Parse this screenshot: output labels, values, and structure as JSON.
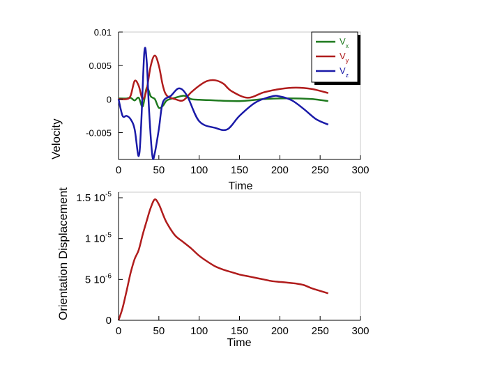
{
  "chart_data": [
    {
      "type": "line",
      "xlabel": "Time",
      "ylabel": "Velocity",
      "xlim": [
        0,
        300
      ],
      "ylim": [
        -0.009,
        0.01
      ],
      "x_ticks": [
        "0",
        "50",
        "100",
        "150",
        "200",
        "250",
        "300"
      ],
      "y_ticks": [
        "0.01",
        "0.005",
        "0",
        "-0.005"
      ],
      "legend": {
        "placement": "top-right",
        "labels": [
          "V",
          "V",
          "V"
        ],
        "subs": [
          "x",
          "y",
          "z"
        ]
      },
      "colors": [
        "#1f7a1f",
        "#b01c1c",
        "#1a1aa8"
      ],
      "series": [
        {
          "name": "Vx",
          "x": [
            0,
            10,
            15,
            20,
            25,
            30,
            35,
            40,
            45,
            50,
            55,
            60,
            70,
            80,
            85,
            90,
            100,
            120,
            150,
            180,
            200,
            220,
            240,
            260
          ],
          "y": [
            0.0001,
            0.0001,
            0.0002,
            -0.0002,
            0.0002,
            -0.0011,
            0.0017,
            0.0004,
            0.0,
            -0.0013,
            -0.001,
            -0.0002,
            0.0002,
            0.0005,
            0.0004,
            0.0,
            -0.0001,
            -0.0002,
            -0.0003,
            0.0,
            0.0001,
            0.0001,
            0.0,
            -0.0003
          ]
        },
        {
          "name": "Vy",
          "x": [
            0,
            10,
            15,
            20,
            25,
            30,
            35,
            40,
            45,
            50,
            55,
            60,
            70,
            80,
            90,
            100,
            110,
            120,
            130,
            140,
            160,
            180,
            200,
            220,
            240,
            260
          ],
          "y": [
            0.0,
            0.0,
            0.0005,
            0.0027,
            0.002,
            0.0,
            0.0015,
            0.005,
            0.0065,
            0.005,
            0.002,
            0.0005,
            0.0,
            -0.0002,
            0.001,
            0.002,
            0.0027,
            0.0028,
            0.0023,
            0.0012,
            0.0002,
            0.001,
            0.0015,
            0.0017,
            0.0015,
            0.0009
          ]
        },
        {
          "name": "Vz",
          "x": [
            0,
            5,
            10,
            15,
            20,
            25,
            28,
            32,
            35,
            38,
            42,
            45,
            50,
            55,
            65,
            75,
            85,
            100,
            120,
            135,
            150,
            170,
            190,
            200,
            215,
            230,
            245,
            260
          ],
          "y": [
            0.0,
            -0.0025,
            -0.0025,
            -0.003,
            -0.0045,
            -0.0085,
            -0.004,
            0.007,
            0.0055,
            -0.002,
            -0.0085,
            -0.008,
            -0.0045,
            -0.0005,
            0.0005,
            0.0016,
            0.0005,
            -0.0033,
            -0.0043,
            -0.0045,
            -0.0025,
            -0.0005,
            0.0004,
            0.0004,
            -0.0002,
            -0.0015,
            -0.003,
            -0.0038
          ]
        }
      ]
    },
    {
      "type": "line",
      "xlabel": "Time",
      "ylabel": "Orientation Displacement",
      "xlim": [
        0,
        300
      ],
      "ylim": [
        0,
        1.5e-05
      ],
      "x_ticks": [
        "0",
        "50",
        "100",
        "150",
        "200",
        "250",
        "300"
      ],
      "y_ticks": [
        {
          "base": "1.5 10",
          "exp": "-5"
        },
        {
          "base": "1 10",
          "exp": "-5"
        },
        {
          "base": "5 10",
          "exp": "-6"
        },
        {
          "base": "0",
          "exp": ""
        }
      ],
      "colors": [
        "#b01c1c"
      ],
      "series": [
        {
          "name": "displacement",
          "x": [
            0,
            5,
            10,
            15,
            20,
            25,
            30,
            35,
            40,
            45,
            50,
            55,
            60,
            70,
            80,
            90,
            100,
            110,
            120,
            130,
            140,
            150,
            160,
            170,
            180,
            190,
            200,
            210,
            220,
            230,
            240,
            250,
            260
          ],
          "y": [
            0,
            1.5e-06,
            3.6e-06,
            5.8e-06,
            7.5e-06,
            8.6e-06,
            1.05e-05,
            1.22e-05,
            1.38e-05,
            1.48e-05,
            1.42e-05,
            1.3e-05,
            1.19e-05,
            1.04e-05,
            9.6e-06,
            8.8e-06,
            7.9e-06,
            7.2e-06,
            6.6e-06,
            6.2e-06,
            5.9e-06,
            5.6e-06,
            5.4e-06,
            5.2e-06,
            5e-06,
            4.8e-06,
            4.7e-06,
            4.6e-06,
            4.5e-06,
            4.3e-06,
            3.9e-06,
            3.6e-06,
            3.3e-06
          ]
        }
      ]
    }
  ]
}
